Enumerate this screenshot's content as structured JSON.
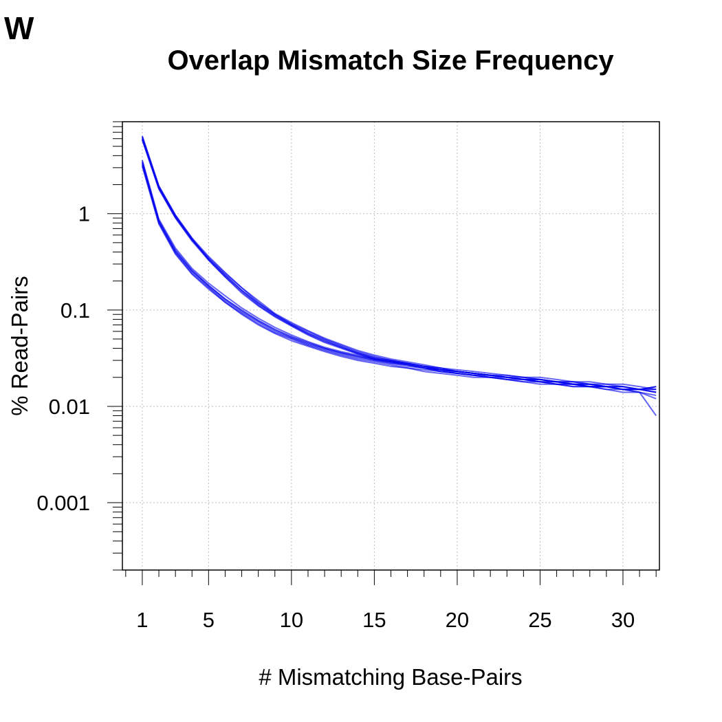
{
  "panel_label": "W",
  "chart_data": {
    "type": "line",
    "title": "Overlap Mismatch Size Frequency",
    "xlabel": "# Mismatching Base-Pairs",
    "ylabel": "% Read-Pairs",
    "xlim": [
      -0.2,
      32.2
    ],
    "ylim": [
      0.0002,
      9
    ],
    "y_scale": "log",
    "grid": true,
    "line_color": "#0000ee",
    "x_ticks": [
      1,
      5,
      10,
      15,
      20,
      25,
      30
    ],
    "x_tick_labels": [
      "1",
      "5",
      "10",
      "15",
      "20",
      "25",
      "30"
    ],
    "y_ticks": [
      0.001,
      0.01,
      0.1,
      1
    ],
    "y_tick_labels": [
      "0.001",
      "0.01",
      "0.1",
      "1"
    ],
    "x": [
      1,
      2,
      3,
      4,
      5,
      6,
      7,
      8,
      9,
      10,
      11,
      12,
      13,
      14,
      15,
      16,
      17,
      18,
      19,
      20,
      21,
      22,
      23,
      24,
      25,
      26,
      27,
      28,
      29,
      30,
      31,
      32
    ],
    "series": [
      {
        "values": [
          6.2,
          1.9,
          0.95,
          0.55,
          0.34,
          0.23,
          0.16,
          0.115,
          0.088,
          0.07,
          0.057,
          0.048,
          0.041,
          0.036,
          0.032,
          0.03,
          0.028,
          0.026,
          0.024,
          0.023,
          0.022,
          0.021,
          0.02,
          0.019,
          0.019,
          0.018,
          0.017,
          0.017,
          0.016,
          0.016,
          0.015,
          0.015
        ]
      },
      {
        "values": [
          5.8,
          1.8,
          0.9,
          0.52,
          0.33,
          0.22,
          0.15,
          0.11,
          0.085,
          0.068,
          0.055,
          0.046,
          0.04,
          0.035,
          0.031,
          0.029,
          0.027,
          0.025,
          0.023,
          0.022,
          0.021,
          0.02,
          0.019,
          0.019,
          0.018,
          0.017,
          0.017,
          0.016,
          0.016,
          0.015,
          0.015,
          0.014
        ]
      },
      {
        "values": [
          6.0,
          1.85,
          0.92,
          0.54,
          0.35,
          0.24,
          0.17,
          0.12,
          0.09,
          0.072,
          0.06,
          0.05,
          0.043,
          0.037,
          0.033,
          0.03,
          0.028,
          0.026,
          0.025,
          0.023,
          0.022,
          0.021,
          0.02,
          0.02,
          0.019,
          0.018,
          0.018,
          0.017,
          0.016,
          0.016,
          0.015,
          0.016
        ]
      },
      {
        "values": [
          6.4,
          1.95,
          0.97,
          0.56,
          0.36,
          0.245,
          0.17,
          0.125,
          0.092,
          0.074,
          0.061,
          0.051,
          0.044,
          0.038,
          0.034,
          0.031,
          0.029,
          0.027,
          0.025,
          0.024,
          0.023,
          0.022,
          0.021,
          0.02,
          0.02,
          0.019,
          0.018,
          0.018,
          0.017,
          0.017,
          0.016,
          0.015
        ]
      },
      {
        "values": [
          5.9,
          1.82,
          0.91,
          0.53,
          0.34,
          0.23,
          0.16,
          0.118,
          0.09,
          0.071,
          0.058,
          0.049,
          0.042,
          0.036,
          0.032,
          0.03,
          0.028,
          0.026,
          0.024,
          0.023,
          0.022,
          0.021,
          0.02,
          0.019,
          0.019,
          0.018,
          0.017,
          0.017,
          0.016,
          0.015,
          0.015,
          0.014
        ]
      },
      {
        "values": [
          6.3,
          1.92,
          0.96,
          0.55,
          0.33,
          0.22,
          0.155,
          0.112,
          0.086,
          0.069,
          0.056,
          0.047,
          0.041,
          0.035,
          0.031,
          0.029,
          0.027,
          0.025,
          0.024,
          0.022,
          0.021,
          0.021,
          0.02,
          0.019,
          0.018,
          0.018,
          0.017,
          0.016,
          0.016,
          0.015,
          0.015,
          0.016
        ]
      },
      {
        "values": [
          3.5,
          0.85,
          0.42,
          0.26,
          0.18,
          0.13,
          0.1,
          0.078,
          0.063,
          0.053,
          0.046,
          0.04,
          0.036,
          0.033,
          0.031,
          0.029,
          0.027,
          0.025,
          0.024,
          0.023,
          0.022,
          0.021,
          0.02,
          0.019,
          0.019,
          0.018,
          0.017,
          0.017,
          0.016,
          0.016,
          0.015,
          0.014
        ]
      },
      {
        "values": [
          3.2,
          0.8,
          0.39,
          0.24,
          0.17,
          0.12,
          0.092,
          0.072,
          0.058,
          0.05,
          0.043,
          0.038,
          0.034,
          0.031,
          0.029,
          0.027,
          0.025,
          0.024,
          0.023,
          0.022,
          0.021,
          0.02,
          0.019,
          0.018,
          0.018,
          0.017,
          0.016,
          0.016,
          0.015,
          0.015,
          0.014,
          0.012
        ]
      },
      {
        "values": [
          3.6,
          0.88,
          0.44,
          0.27,
          0.19,
          0.14,
          0.105,
          0.082,
          0.066,
          0.055,
          0.047,
          0.041,
          0.037,
          0.034,
          0.031,
          0.029,
          0.028,
          0.026,
          0.025,
          0.023,
          0.022,
          0.021,
          0.021,
          0.02,
          0.019,
          0.018,
          0.018,
          0.017,
          0.017,
          0.016,
          0.015,
          0.015
        ]
      },
      {
        "values": [
          3.3,
          0.82,
          0.4,
          0.25,
          0.175,
          0.125,
          0.095,
          0.075,
          0.06,
          0.051,
          0.044,
          0.039,
          0.035,
          0.032,
          0.03,
          0.028,
          0.026,
          0.025,
          0.023,
          0.022,
          0.021,
          0.02,
          0.02,
          0.019,
          0.018,
          0.017,
          0.017,
          0.016,
          0.016,
          0.015,
          0.014,
          0.013
        ]
      },
      {
        "values": [
          3.4,
          0.84,
          0.41,
          0.255,
          0.18,
          0.13,
          0.098,
          0.077,
          0.062,
          0.052,
          0.045,
          0.04,
          0.036,
          0.033,
          0.03,
          0.028,
          0.027,
          0.025,
          0.024,
          0.023,
          0.022,
          0.021,
          0.02,
          0.019,
          0.018,
          0.018,
          0.017,
          0.016,
          0.016,
          0.015,
          0.015,
          0.016
        ]
      },
      {
        "values": [
          3.1,
          0.78,
          0.38,
          0.235,
          0.165,
          0.12,
          0.09,
          0.07,
          0.057,
          0.048,
          0.042,
          0.037,
          0.033,
          0.03,
          0.028,
          0.026,
          0.025,
          0.023,
          0.022,
          0.021,
          0.02,
          0.02,
          0.019,
          0.018,
          0.017,
          0.017,
          0.016,
          0.016,
          0.015,
          0.014,
          0.014,
          0.008
        ]
      }
    ]
  }
}
